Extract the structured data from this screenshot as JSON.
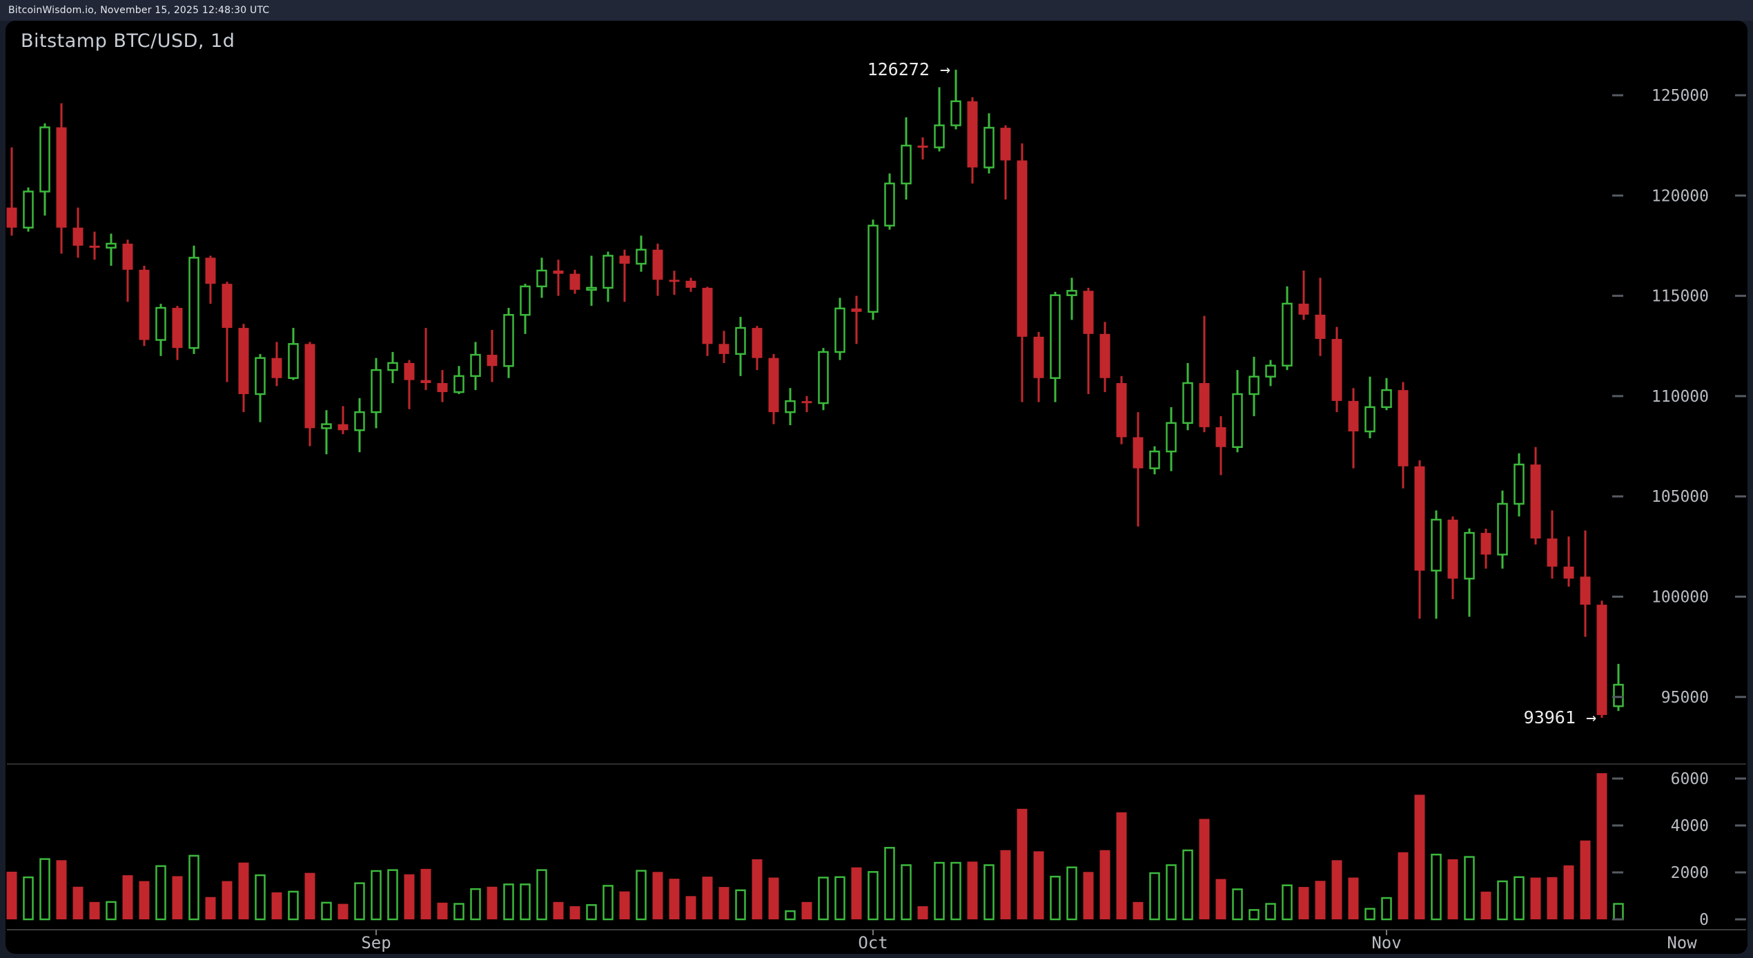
{
  "header": {
    "status_line": "BitcoinWisdom.io, November 15, 2025 12:48:30 UTC"
  },
  "chart": {
    "title": "Bitstamp BTC/USD, 1d"
  },
  "annotations": {
    "high_label": "126272",
    "low_label": "93961",
    "arrow_glyph": "→"
  },
  "colors": {
    "up": "#3cb93c",
    "down": "#c1272d",
    "axis_text": "#b8bcc2",
    "tick_dash": "#565b63",
    "divider": "#2f2f2f",
    "annotation_text": "#ececec",
    "panel_bg": "#000000",
    "page_bg": "#181d2a"
  },
  "chart_data": {
    "type": "candlestick_with_volume",
    "title": "Bitstamp BTC/USD, 1d",
    "exchange": "Bitstamp",
    "pair": "BTC/USD",
    "interval": "1d",
    "price_axis": {
      "ticks": [
        125000,
        120000,
        115000,
        110000,
        105000,
        100000,
        95000
      ],
      "tick_step": 5000
    },
    "volume_axis": {
      "ticks": [
        6000,
        4000,
        2000,
        0
      ]
    },
    "x_axis": {
      "month_labels": [
        "Sep",
        "Oct",
        "Nov"
      ],
      "month_dates": [
        "2025-09-01",
        "2025-10-01",
        "2025-11-01"
      ],
      "now_label": "Now"
    },
    "high_annotation": {
      "value": 126272,
      "date": "2025-10-06"
    },
    "low_annotation": {
      "value": 93961,
      "date": "2025-11-14"
    },
    "legend_position": "none",
    "grid": false,
    "columns": [
      "date",
      "open",
      "high",
      "low",
      "close",
      "volume"
    ],
    "candles": [
      [
        "2025-08-10",
        119400,
        122400,
        118000,
        118400,
        2030
      ],
      [
        "2025-08-11",
        118400,
        120400,
        118200,
        120200,
        1790
      ],
      [
        "2025-08-12",
        120200,
        123600,
        119000,
        123400,
        2570
      ],
      [
        "2025-08-13",
        123400,
        124600,
        117100,
        118400,
        2520
      ],
      [
        "2025-08-14",
        118400,
        119400,
        116900,
        117500,
        1390
      ],
      [
        "2025-08-15",
        117500,
        118200,
        116800,
        117400,
        740
      ],
      [
        "2025-08-16",
        117400,
        118100,
        116500,
        117600,
        740
      ],
      [
        "2025-08-17",
        117600,
        117800,
        114700,
        116300,
        1880
      ],
      [
        "2025-08-18",
        116300,
        116500,
        112500,
        112800,
        1630
      ],
      [
        "2025-08-19",
        112800,
        114600,
        112000,
        114400,
        2270
      ],
      [
        "2025-08-20",
        114400,
        114500,
        111800,
        112400,
        1840
      ],
      [
        "2025-08-21",
        112400,
        117500,
        112100,
        116900,
        2710
      ],
      [
        "2025-08-22",
        116900,
        117000,
        114600,
        115600,
        950
      ],
      [
        "2025-08-23",
        115600,
        115700,
        110700,
        113400,
        1630
      ],
      [
        "2025-08-24",
        113400,
        113600,
        109200,
        110100,
        2420
      ],
      [
        "2025-08-25",
        110100,
        112100,
        108700,
        111900,
        1880
      ],
      [
        "2025-08-26",
        111900,
        112700,
        110500,
        110900,
        1150
      ],
      [
        "2025-08-27",
        110900,
        113400,
        110800,
        112600,
        1180
      ],
      [
        "2025-08-28",
        112600,
        112700,
        107500,
        108400,
        1980
      ],
      [
        "2025-08-29",
        108400,
        109300,
        107100,
        108600,
        710
      ],
      [
        "2025-08-30",
        108600,
        109500,
        108100,
        108300,
        660
      ],
      [
        "2025-08-31",
        108300,
        109900,
        107200,
        109200,
        1540
      ],
      [
        "2025-09-01",
        109200,
        111900,
        108400,
        111300,
        2060
      ],
      [
        "2025-09-02",
        111300,
        112200,
        110650,
        111650,
        2100
      ],
      [
        "2025-09-03",
        111650,
        111800,
        109350,
        110800,
        1920
      ],
      [
        "2025-09-04",
        110800,
        113400,
        110300,
        110650,
        2150
      ],
      [
        "2025-09-05",
        110650,
        111300,
        109700,
        110200,
        710
      ],
      [
        "2025-09-06",
        110200,
        111500,
        110100,
        111000,
        660
      ],
      [
        "2025-09-07",
        111000,
        112700,
        110300,
        112060,
        1290
      ],
      [
        "2025-09-08",
        112060,
        113300,
        110700,
        111500,
        1390
      ],
      [
        "2025-09-09",
        111500,
        114400,
        110900,
        114050,
        1490
      ],
      [
        "2025-09-10",
        114050,
        115600,
        113100,
        115470,
        1490
      ],
      [
        "2025-09-11",
        115470,
        116900,
        114900,
        116260,
        2100
      ],
      [
        "2025-09-12",
        116260,
        116800,
        115000,
        116100,
        740
      ],
      [
        "2025-09-13",
        116100,
        116300,
        115100,
        115300,
        560
      ],
      [
        "2025-09-14",
        115300,
        117000,
        114500,
        115400,
        610
      ],
      [
        "2025-09-15",
        115400,
        117200,
        114700,
        117000,
        1430
      ],
      [
        "2025-09-16",
        117000,
        117300,
        114700,
        116600,
        1190
      ],
      [
        "2025-09-17",
        116600,
        118000,
        116200,
        117300,
        2070
      ],
      [
        "2025-09-18",
        117300,
        117600,
        115000,
        115800,
        2020
      ],
      [
        "2025-09-19",
        115800,
        116250,
        115050,
        115750,
        1730
      ],
      [
        "2025-09-20",
        115750,
        115900,
        115200,
        115400,
        990
      ],
      [
        "2025-09-21",
        115400,
        115450,
        112000,
        112600,
        1820
      ],
      [
        "2025-09-22",
        112600,
        113250,
        111650,
        112100,
        1380
      ],
      [
        "2025-09-23",
        112100,
        113950,
        111000,
        113400,
        1240
      ],
      [
        "2025-09-24",
        113400,
        113500,
        111300,
        111900,
        2560
      ],
      [
        "2025-09-25",
        111900,
        112100,
        108600,
        109200,
        1780
      ],
      [
        "2025-09-26",
        109200,
        110400,
        108550,
        109750,
        350
      ],
      [
        "2025-09-27",
        109750,
        110000,
        109200,
        109650,
        740
      ],
      [
        "2025-09-28",
        109650,
        112400,
        109300,
        112200,
        1780
      ],
      [
        "2025-09-29",
        112200,
        114900,
        111800,
        114370,
        1800
      ],
      [
        "2025-09-30",
        114370,
        115000,
        112600,
        114200,
        2215
      ],
      [
        "2025-10-01",
        114200,
        118800,
        113800,
        118500,
        2020
      ],
      [
        "2025-10-02",
        118500,
        121100,
        118300,
        120600,
        3050
      ],
      [
        "2025-10-03",
        120600,
        123900,
        119800,
        122490,
        2310
      ],
      [
        "2025-10-04",
        122490,
        122900,
        121800,
        122400,
        560
      ],
      [
        "2025-10-05",
        122400,
        125400,
        122200,
        123500,
        2410
      ],
      [
        "2025-10-06",
        123500,
        126272,
        123300,
        124700,
        2410
      ],
      [
        "2025-10-07",
        124700,
        124900,
        120600,
        121400,
        2460
      ],
      [
        "2025-10-08",
        121400,
        124100,
        121100,
        123380,
        2310
      ],
      [
        "2025-10-09",
        123380,
        123500,
        119800,
        121750,
        2950
      ],
      [
        "2025-10-10",
        121750,
        122600,
        109700,
        112960,
        4710
      ],
      [
        "2025-10-11",
        112960,
        113200,
        109700,
        110900,
        2900
      ],
      [
        "2025-10-12",
        110900,
        115200,
        109700,
        115030,
        1820
      ],
      [
        "2025-10-13",
        115030,
        115900,
        113800,
        115250,
        2215
      ],
      [
        "2025-10-14",
        115250,
        115400,
        110100,
        113100,
        2020
      ],
      [
        "2025-10-15",
        113100,
        113700,
        110200,
        110900,
        2950
      ],
      [
        "2025-10-16",
        110650,
        111000,
        107600,
        107950,
        4560
      ],
      [
        "2025-10-17",
        107950,
        109200,
        103500,
        106400,
        740
      ],
      [
        "2025-10-18",
        106400,
        107500,
        106100,
        107240,
        1970
      ],
      [
        "2025-10-19",
        107240,
        109450,
        106260,
        108660,
        2310
      ],
      [
        "2025-10-20",
        108660,
        111650,
        108300,
        110650,
        2940
      ],
      [
        "2025-10-21",
        110650,
        114000,
        108200,
        108450,
        4280
      ],
      [
        "2025-10-22",
        108450,
        109000,
        106060,
        107460,
        1720
      ],
      [
        "2025-10-23",
        107460,
        111300,
        107200,
        110100,
        1280
      ],
      [
        "2025-10-24",
        110100,
        111960,
        109000,
        110970,
        400
      ],
      [
        "2025-10-25",
        110970,
        111800,
        110500,
        111520,
        660
      ],
      [
        "2025-10-26",
        111520,
        115470,
        111300,
        114610,
        1450
      ],
      [
        "2025-10-27",
        114610,
        116260,
        113800,
        114060,
        1380
      ],
      [
        "2025-10-28",
        114060,
        115900,
        112000,
        112850,
        1640
      ],
      [
        "2025-10-29",
        112850,
        113450,
        109200,
        109760,
        2520
      ],
      [
        "2025-10-30",
        109760,
        110400,
        106400,
        108240,
        1780
      ],
      [
        "2025-10-31",
        108240,
        110970,
        107900,
        109450,
        450
      ],
      [
        "2025-11-01",
        109450,
        110900,
        109300,
        110300,
        910
      ],
      [
        "2025-11-02",
        110300,
        110700,
        105400,
        106500,
        2860
      ],
      [
        "2025-11-03",
        106500,
        106800,
        98900,
        101300,
        5310
      ],
      [
        "2025-11-04",
        101300,
        104300,
        98900,
        103840,
        2760
      ],
      [
        "2025-11-05",
        103840,
        104000,
        99880,
        100900,
        2560
      ],
      [
        "2025-11-06",
        100900,
        103400,
        99000,
        103180,
        2660
      ],
      [
        "2025-11-07",
        103180,
        103390,
        101400,
        102100,
        1180
      ],
      [
        "2025-11-08",
        102100,
        105290,
        101400,
        104630,
        1620
      ],
      [
        "2025-11-09",
        104630,
        107150,
        104000,
        106590,
        1800
      ],
      [
        "2025-11-10",
        106590,
        107460,
        102600,
        102900,
        1780
      ],
      [
        "2025-11-11",
        102900,
        104300,
        100900,
        101500,
        1800
      ],
      [
        "2025-11-12",
        101500,
        103000,
        100500,
        100900,
        2300
      ],
      [
        "2025-11-13",
        101000,
        103300,
        98000,
        99600,
        3360
      ],
      [
        "2025-11-14",
        99600,
        99800,
        93961,
        94100,
        6230
      ],
      [
        "2025-11-15",
        94540,
        96650,
        94300,
        95610,
        660
      ]
    ]
  }
}
